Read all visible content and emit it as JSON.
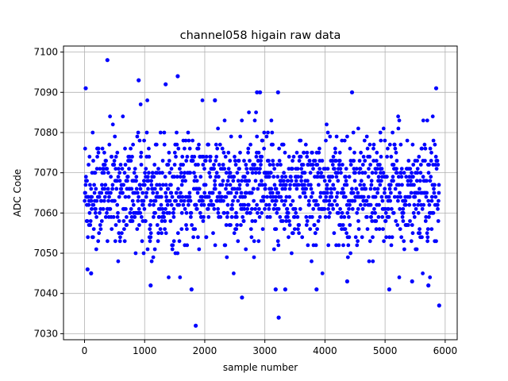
{
  "chart_data": {
    "type": "scatter",
    "title": "channel058 higain raw data",
    "xlabel": "sample number",
    "ylabel": "ADC Code",
    "xlim": [
      -350,
      6200
    ],
    "ylim": [
      7028.5,
      7101.5
    ],
    "xticks": [
      0,
      1000,
      2000,
      3000,
      4000,
      5000,
      6000
    ],
    "yticks": [
      7030,
      7040,
      7050,
      7060,
      7070,
      7080,
      7090,
      7100
    ],
    "grid": true,
    "marker_color": "#0000ff",
    "n_samples": 5900,
    "bulk_band": [
      7054,
      7077
    ],
    "outliers": [
      {
        "x": 20,
        "y": 7091
      },
      {
        "x": 380,
        "y": 7098
      },
      {
        "x": 900,
        "y": 7093
      },
      {
        "x": 1550,
        "y": 7094
      },
      {
        "x": 1350,
        "y": 7092
      },
      {
        "x": 2170,
        "y": 7088
      },
      {
        "x": 2870,
        "y": 7090
      },
      {
        "x": 2920,
        "y": 7090
      },
      {
        "x": 3220,
        "y": 7090
      },
      {
        "x": 4450,
        "y": 7090
      },
      {
        "x": 5850,
        "y": 7091
      },
      {
        "x": 50,
        "y": 7046
      },
      {
        "x": 110,
        "y": 7045
      },
      {
        "x": 1100,
        "y": 7042
      },
      {
        "x": 1780,
        "y": 7041
      },
      {
        "x": 1850,
        "y": 7032
      },
      {
        "x": 2620,
        "y": 7039
      },
      {
        "x": 3230,
        "y": 7034
      },
      {
        "x": 3180,
        "y": 7041
      },
      {
        "x": 3340,
        "y": 7041
      },
      {
        "x": 3860,
        "y": 7041
      },
      {
        "x": 5070,
        "y": 7041
      },
      {
        "x": 5900,
        "y": 7037
      },
      {
        "x": 4370,
        "y": 7043
      },
      {
        "x": 5450,
        "y": 7043
      },
      {
        "x": 5720,
        "y": 7042
      }
    ]
  }
}
